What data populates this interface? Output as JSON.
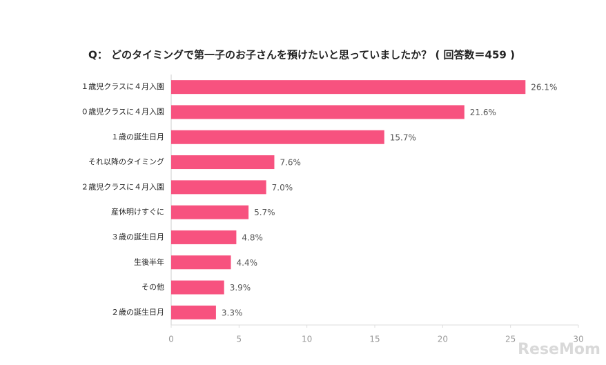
{
  "chart_data": {
    "type": "bar",
    "orientation": "horizontal",
    "title": "Q： どのタイミングで第一子のお子さんを預けたいと思っていましたか？ ( 回答数＝459 )",
    "categories": [
      "１歳児クラスに４月入園",
      "０歳児クラスに４月入園",
      "１歳の誕生日月",
      "それ以降のタイミング",
      "２歳児クラスに４月入園",
      "産休明けすぐに",
      "３歳の誕生日月",
      "生後半年",
      "その他",
      "２歳の誕生日月"
    ],
    "values": [
      26.1,
      21.6,
      15.7,
      7.6,
      7.0,
      5.7,
      4.8,
      4.4,
      3.9,
      3.3
    ],
    "value_labels": [
      "26.1%",
      "21.6%",
      "15.7%",
      "7.6%",
      "7.0%",
      "5.7%",
      "4.8%",
      "4.4%",
      "3.9%",
      "3.3%"
    ],
    "color": "#f7527f",
    "xlim": [
      0,
      30
    ],
    "xticks": [
      0,
      5,
      10,
      15,
      20,
      25,
      30
    ],
    "grid": false,
    "watermark": "ReseMom"
  }
}
